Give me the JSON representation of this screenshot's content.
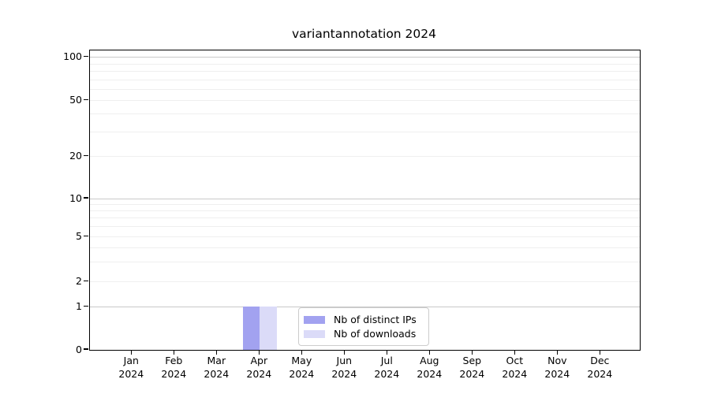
{
  "title": "variantannotation 2024",
  "chart_data": {
    "type": "bar",
    "title": "variantannotation 2024",
    "categories": [
      "Jan",
      "Feb",
      "Mar",
      "Apr",
      "May",
      "Jun",
      "Jul",
      "Aug",
      "Sep",
      "Oct",
      "Nov",
      "Dec"
    ],
    "category_year": "2024",
    "series": [
      {
        "name": "Nb of distinct IPs",
        "color": "#a2a2f0",
        "values": [
          0,
          0,
          0,
          1,
          0,
          0,
          0,
          0,
          0,
          0,
          0,
          0
        ]
      },
      {
        "name": "Nb of downloads",
        "color": "#dbdbf8",
        "values": [
          0,
          0,
          0,
          1,
          0,
          0,
          0,
          0,
          0,
          0,
          0,
          0
        ]
      }
    ],
    "xlabel": "",
    "ylabel": "",
    "y_axis": {
      "scale": "log (with 0 baseline)",
      "tick_values": [
        0,
        1,
        2,
        5,
        10,
        20,
        50,
        100
      ],
      "major_grid_values": [
        1,
        10,
        100
      ],
      "minor_grid_values": [
        2,
        3,
        4,
        5,
        6,
        7,
        8,
        9,
        20,
        30,
        40,
        50,
        60,
        70,
        80,
        90
      ],
      "ylim_top_approx": 110
    },
    "grid": true,
    "legend": {
      "position": "bottom-center-inside",
      "entries": [
        "Nb of distinct IPs",
        "Nb of downloads"
      ]
    }
  },
  "colors": {
    "background": "#ffffff",
    "axis": "#000000",
    "major_grid": "#c9c9c9",
    "minor_grid": "#efefef",
    "legend_border": "#cccccc",
    "bar_distinct_ips": "#a2a2f0",
    "bar_downloads": "#dbdbf8"
  }
}
